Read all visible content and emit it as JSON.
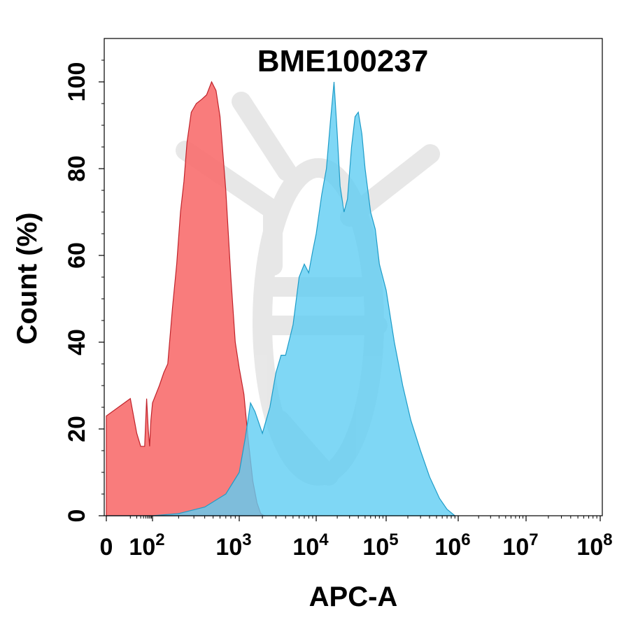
{
  "chart_data": {
    "type": "area",
    "title": "BME100237",
    "xlabel": "APC-A",
    "ylabel": "Count  (%)",
    "x_scale": "biexponential",
    "xlim": [
      0,
      100000000
    ],
    "ylim": [
      0,
      110
    ],
    "x_ticks": [
      {
        "value": 0,
        "base": "0",
        "exp": ""
      },
      {
        "value": 100,
        "base": "10",
        "exp": "2"
      },
      {
        "value": 1000,
        "base": "10",
        "exp": "3"
      },
      {
        "value": 10000,
        "base": "10",
        "exp": "4"
      },
      {
        "value": 100000,
        "base": "10",
        "exp": "5"
      },
      {
        "value": 1000000,
        "base": "10",
        "exp": "6"
      },
      {
        "value": 10000000,
        "base": "10",
        "exp": "7"
      },
      {
        "value": 100000000,
        "base": "10",
        "exp": "8"
      }
    ],
    "y_ticks": [
      {
        "value": 0,
        "label": "0"
      },
      {
        "value": 20,
        "label": "20"
      },
      {
        "value": 40,
        "label": "40"
      },
      {
        "value": 60,
        "label": "60"
      },
      {
        "value": 80,
        "label": "80"
      },
      {
        "value": 100,
        "label": "100"
      }
    ],
    "grid": false,
    "series": [
      {
        "color": "#f87171",
        "stroke": "#c0232b",
        "points": [
          [
            0,
            23
          ],
          [
            10,
            27
          ],
          [
            20,
            19
          ],
          [
            30,
            16
          ],
          [
            45,
            16
          ],
          [
            55,
            27
          ],
          [
            65,
            20
          ],
          [
            75,
            16
          ],
          [
            85,
            22
          ],
          [
            100,
            26
          ],
          [
            120,
            30
          ],
          [
            135,
            33
          ],
          [
            150,
            35
          ],
          [
            170,
            48
          ],
          [
            190,
            58
          ],
          [
            210,
            70
          ],
          [
            230,
            77
          ],
          [
            250,
            86
          ],
          [
            280,
            93
          ],
          [
            320,
            95
          ],
          [
            370,
            96
          ],
          [
            420,
            97
          ],
          [
            480,
            100
          ],
          [
            540,
            98
          ],
          [
            600,
            92
          ],
          [
            700,
            75
          ],
          [
            800,
            55
          ],
          [
            900,
            40
          ],
          [
            1000,
            34
          ],
          [
            1150,
            28
          ],
          [
            1300,
            18
          ],
          [
            1500,
            8
          ],
          [
            1700,
            3
          ],
          [
            1900,
            0.5
          ],
          [
            2100,
            0
          ]
        ]
      },
      {
        "color": "#5fcdf2",
        "stroke": "#1e9cc8",
        "points": [
          [
            0,
            0
          ],
          [
            100,
            0
          ],
          [
            200,
            0.5
          ],
          [
            400,
            2
          ],
          [
            700,
            5
          ],
          [
            1000,
            10
          ],
          [
            1200,
            18
          ],
          [
            1400,
            26
          ],
          [
            1600,
            24
          ],
          [
            2000,
            19
          ],
          [
            2500,
            25
          ],
          [
            3000,
            33
          ],
          [
            3500,
            37
          ],
          [
            4000,
            37
          ],
          [
            5000,
            44
          ],
          [
            6000,
            55
          ],
          [
            7000,
            58
          ],
          [
            8000,
            56
          ],
          [
            9000,
            61
          ],
          [
            10000,
            65
          ],
          [
            12000,
            74
          ],
          [
            14000,
            80
          ],
          [
            16000,
            91
          ],
          [
            18000,
            100
          ],
          [
            20000,
            88
          ],
          [
            22000,
            76
          ],
          [
            25000,
            70
          ],
          [
            28000,
            73
          ],
          [
            32000,
            85
          ],
          [
            36000,
            92
          ],
          [
            40000,
            93
          ],
          [
            45000,
            88
          ],
          [
            50000,
            80
          ],
          [
            60000,
            70
          ],
          [
            70000,
            66
          ],
          [
            80000,
            58
          ],
          [
            100000,
            52
          ],
          [
            130000,
            40
          ],
          [
            170000,
            30
          ],
          [
            220000,
            22
          ],
          [
            300000,
            15
          ],
          [
            400000,
            9
          ],
          [
            550000,
            4
          ],
          [
            700000,
            1.5
          ],
          [
            900000,
            0
          ]
        ]
      }
    ]
  }
}
